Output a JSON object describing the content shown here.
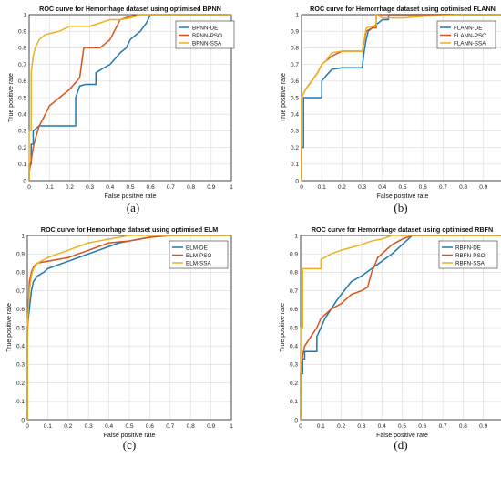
{
  "colors": {
    "DE": "#1f77b4",
    "PSO": "#d95319",
    "SSA": "#edb120"
  },
  "chart_data": [
    {
      "type": "line",
      "title": "ROC curve for Hemorrhage dataset using optimised BPNN",
      "xlabel": "False positive rate",
      "ylabel": "True positive rate",
      "xlim": [
        0,
        1
      ],
      "ylim": [
        0,
        1
      ],
      "ticks": [
        "0",
        "0.1",
        "0.2",
        "0.3",
        "0.4",
        "0.5",
        "0.6",
        "0.7",
        "0.8",
        "0.9",
        "1"
      ],
      "grid": true,
      "legend": "top-right",
      "caption": "(a)",
      "series": [
        {
          "name": "BPNN-DE",
          "color_key": "DE",
          "x": [
            0,
            0,
            0.01,
            0.01,
            0.02,
            0.02,
            0.05,
            0.1,
            0.23,
            0.23,
            0.25,
            0.28,
            0.33,
            0.33,
            0.37,
            0.4,
            0.45,
            0.48,
            0.5,
            0.55,
            0.58,
            0.6,
            0.65,
            0.7,
            1.0
          ],
          "y": [
            0,
            0.1,
            0.1,
            0.22,
            0.22,
            0.3,
            0.33,
            0.33,
            0.33,
            0.5,
            0.57,
            0.58,
            0.58,
            0.65,
            0.68,
            0.7,
            0.77,
            0.8,
            0.85,
            0.9,
            0.95,
            1.0,
            1.0,
            1.0,
            1.0
          ]
        },
        {
          "name": "BPNN-PSO",
          "color_key": "PSO",
          "x": [
            0,
            0,
            0.01,
            0.02,
            0.03,
            0.05,
            0.08,
            0.1,
            0.15,
            0.2,
            0.25,
            0.27,
            0.33,
            0.35,
            0.4,
            0.45,
            0.5,
            0.55,
            0.6,
            1.0
          ],
          "y": [
            0,
            0.05,
            0.12,
            0.2,
            0.25,
            0.33,
            0.4,
            0.45,
            0.5,
            0.55,
            0.62,
            0.8,
            0.8,
            0.8,
            0.85,
            0.97,
            0.99,
            1.0,
            1.0,
            1.0
          ]
        },
        {
          "name": "BPNN-SSA",
          "color_key": "SSA",
          "x": [
            0,
            0,
            0.01,
            0.01,
            0.02,
            0.03,
            0.05,
            0.08,
            0.15,
            0.2,
            0.3,
            0.35,
            0.4,
            0.45,
            0.5,
            0.55,
            0.6,
            1.0
          ],
          "y": [
            0,
            0.3,
            0.3,
            0.65,
            0.75,
            0.8,
            0.85,
            0.88,
            0.9,
            0.93,
            0.93,
            0.95,
            0.97,
            0.97,
            0.98,
            1.0,
            1.0,
            1.0
          ]
        }
      ]
    },
    {
      "type": "line",
      "title": "ROC curve for Hemorrhage dataset using optimised FLANN",
      "xlabel": "False positive rate",
      "ylabel": "True positive rate",
      "xlim": [
        0,
        1
      ],
      "ylim": [
        0,
        1
      ],
      "ticks": [
        "0",
        "0.1",
        "0.2",
        "0.3",
        "0.4",
        "0.5",
        "0.6",
        "0.7",
        "0.8",
        "0.9",
        "1"
      ],
      "grid": true,
      "legend": "top-right",
      "caption": "(b)",
      "series": [
        {
          "name": "FLANN-DE",
          "color_key": "DE",
          "x": [
            0,
            0,
            0.01,
            0.01,
            0.1,
            0.1,
            0.12,
            0.15,
            0.2,
            0.25,
            0.3,
            0.31,
            0.32,
            0.33,
            0.35,
            0.38,
            0.4,
            0.43,
            0.43,
            0.45,
            1.0
          ],
          "y": [
            0,
            0.2,
            0.2,
            0.5,
            0.5,
            0.6,
            0.63,
            0.67,
            0.68,
            0.68,
            0.68,
            0.78,
            0.85,
            0.9,
            0.92,
            0.95,
            0.97,
            0.97,
            1.0,
            1.0,
            1.0
          ]
        },
        {
          "name": "FLANN-PSO",
          "color_key": "PSO",
          "x": [
            0,
            0,
            0.02,
            0.05,
            0.08,
            0.1,
            0.15,
            0.2,
            0.25,
            0.3,
            0.32,
            0.35,
            0.37,
            0.37,
            0.4,
            0.5,
            0.6,
            1.0
          ],
          "y": [
            0,
            0.5,
            0.55,
            0.6,
            0.65,
            0.7,
            0.75,
            0.78,
            0.78,
            0.78,
            0.9,
            0.92,
            0.92,
            1.0,
            1.0,
            1.0,
            1.0,
            1.0
          ]
        },
        {
          "name": "FLANN-SSA",
          "color_key": "SSA",
          "x": [
            0,
            0,
            0.02,
            0.05,
            0.08,
            0.1,
            0.12,
            0.15,
            0.2,
            0.3,
            0.32,
            0.35,
            0.37,
            0.37,
            0.4,
            0.5,
            0.6,
            0.8,
            1.0
          ],
          "y": [
            0,
            0.5,
            0.55,
            0.6,
            0.65,
            0.7,
            0.72,
            0.77,
            0.78,
            0.78,
            0.92,
            0.93,
            0.93,
            1.0,
            0.98,
            0.98,
            0.99,
            1.0,
            1.0
          ]
        }
      ]
    },
    {
      "type": "line",
      "title": "ROC curve for Hemorrhage dataset using optimised ELM",
      "xlabel": "False positive rate",
      "ylabel": "True positive rate",
      "xlim": [
        0,
        1
      ],
      "ylim": [
        0,
        1
      ],
      "ticks": [
        "0",
        "0.1",
        "0.2",
        "0.3",
        "0.4",
        "0.5",
        "0.6",
        "0.7",
        "0.8",
        "0.9",
        "1"
      ],
      "grid": true,
      "legend": "top-right",
      "caption": "(c)",
      "series": [
        {
          "name": "ELM-DE",
          "color_key": "DE",
          "x": [
            0,
            0,
            0.01,
            0.02,
            0.03,
            0.05,
            0.08,
            0.1,
            0.15,
            0.2,
            0.25,
            0.3,
            0.35,
            0.4,
            0.45,
            0.5,
            0.55,
            0.6,
            0.7,
            0.8,
            1.0
          ],
          "y": [
            0,
            0.5,
            0.6,
            0.7,
            0.75,
            0.78,
            0.8,
            0.82,
            0.84,
            0.86,
            0.88,
            0.9,
            0.92,
            0.94,
            0.96,
            0.97,
            0.98,
            0.99,
            1.0,
            1.0,
            1.0
          ]
        },
        {
          "name": "ELM-PSO",
          "color_key": "PSO",
          "x": [
            0,
            0,
            0.01,
            0.02,
            0.03,
            0.05,
            0.1,
            0.15,
            0.2,
            0.25,
            0.3,
            0.35,
            0.4,
            0.5,
            0.55,
            0.6,
            0.7,
            0.8,
            1.0
          ],
          "y": [
            0,
            0.45,
            0.75,
            0.8,
            0.83,
            0.85,
            0.86,
            0.87,
            0.88,
            0.9,
            0.92,
            0.94,
            0.96,
            0.97,
            0.98,
            0.99,
            1.0,
            1.0,
            1.0
          ]
        },
        {
          "name": "ELM-SSA",
          "color_key": "SSA",
          "x": [
            0,
            0,
            0.01,
            0.02,
            0.03,
            0.05,
            0.1,
            0.15,
            0.2,
            0.25,
            0.3,
            0.35,
            0.4,
            0.45,
            0.5,
            0.6,
            1.0
          ],
          "y": [
            0,
            0.5,
            0.7,
            0.78,
            0.82,
            0.85,
            0.88,
            0.9,
            0.92,
            0.94,
            0.96,
            0.97,
            0.98,
            0.99,
            1.0,
            1.0,
            1.0
          ]
        }
      ]
    },
    {
      "type": "line",
      "title": "ROC curve for Hemorrhage dataset using optimised RBFN",
      "xlabel": "False positive rate",
      "ylabel": "True positive rate",
      "xlim": [
        0,
        1
      ],
      "ylim": [
        0,
        1
      ],
      "ticks": [
        "0",
        "0.1",
        "0.2",
        "0.3",
        "0.4",
        "0.5",
        "0.6",
        "0.7",
        "0.8",
        "0.9",
        "1"
      ],
      "grid": true,
      "legend": "top-right",
      "caption": "(d)",
      "series": [
        {
          "name": "RBFN-DE",
          "color_key": "DE",
          "x": [
            0,
            0,
            0.01,
            0.01,
            0.02,
            0.02,
            0.08,
            0.08,
            0.1,
            0.12,
            0.15,
            0.18,
            0.2,
            0.25,
            0.3,
            0.35,
            0.4,
            0.45,
            0.5,
            0.55,
            0.6,
            1.0
          ],
          "y": [
            0,
            0.25,
            0.25,
            0.33,
            0.33,
            0.37,
            0.37,
            0.45,
            0.5,
            0.55,
            0.6,
            0.65,
            0.68,
            0.75,
            0.78,
            0.82,
            0.86,
            0.9,
            0.95,
            1.0,
            1.0,
            1.0
          ]
        },
        {
          "name": "RBFN-PSO",
          "color_key": "PSO",
          "x": [
            0,
            0,
            0.01,
            0.02,
            0.05,
            0.08,
            0.1,
            0.15,
            0.2,
            0.25,
            0.3,
            0.33,
            0.35,
            0.38,
            0.4,
            0.45,
            0.5,
            0.55,
            0.6,
            0.8,
            1.0
          ],
          "y": [
            0,
            0.25,
            0.35,
            0.4,
            0.45,
            0.5,
            0.55,
            0.6,
            0.63,
            0.68,
            0.7,
            0.72,
            0.8,
            0.88,
            0.9,
            0.95,
            0.98,
            1.0,
            1.0,
            1.0,
            1.0
          ]
        },
        {
          "name": "RBFN-SSA",
          "color_key": "SSA",
          "x": [
            0,
            0,
            0.01,
            0.01,
            0.1,
            0.1,
            0.15,
            0.2,
            0.3,
            0.35,
            0.4,
            0.45,
            0.5,
            0.6,
            1.0
          ],
          "y": [
            0,
            0.5,
            0.5,
            0.82,
            0.82,
            0.87,
            0.9,
            0.92,
            0.95,
            0.97,
            0.98,
            1.0,
            1.0,
            1.0,
            1.0
          ]
        }
      ]
    }
  ]
}
